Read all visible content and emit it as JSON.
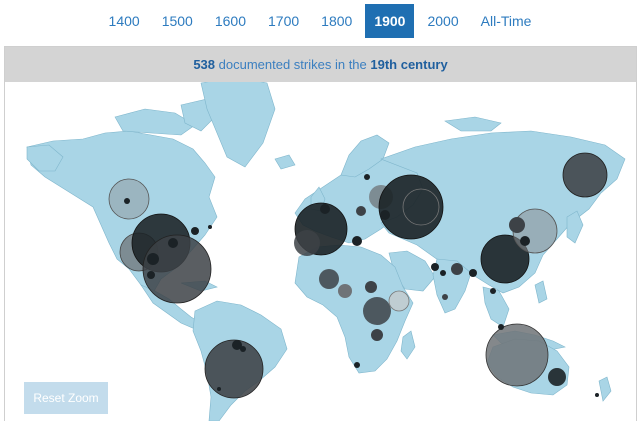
{
  "nav": {
    "tabs": [
      "1400",
      "1500",
      "1600",
      "1700",
      "1800",
      "1900",
      "2000",
      "All-Time"
    ],
    "active": "1900"
  },
  "summary": {
    "count": "538",
    "middle_text": " documented strikes in the ",
    "century_label": "19th century"
  },
  "reset_zoom_label": "Reset Zoom",
  "map": {
    "land_color": "#a9d5e6",
    "bubble_dark": "#1b2226",
    "bubble_mid": "#3d4247",
    "bubble_light": "#6f7377"
  }
}
